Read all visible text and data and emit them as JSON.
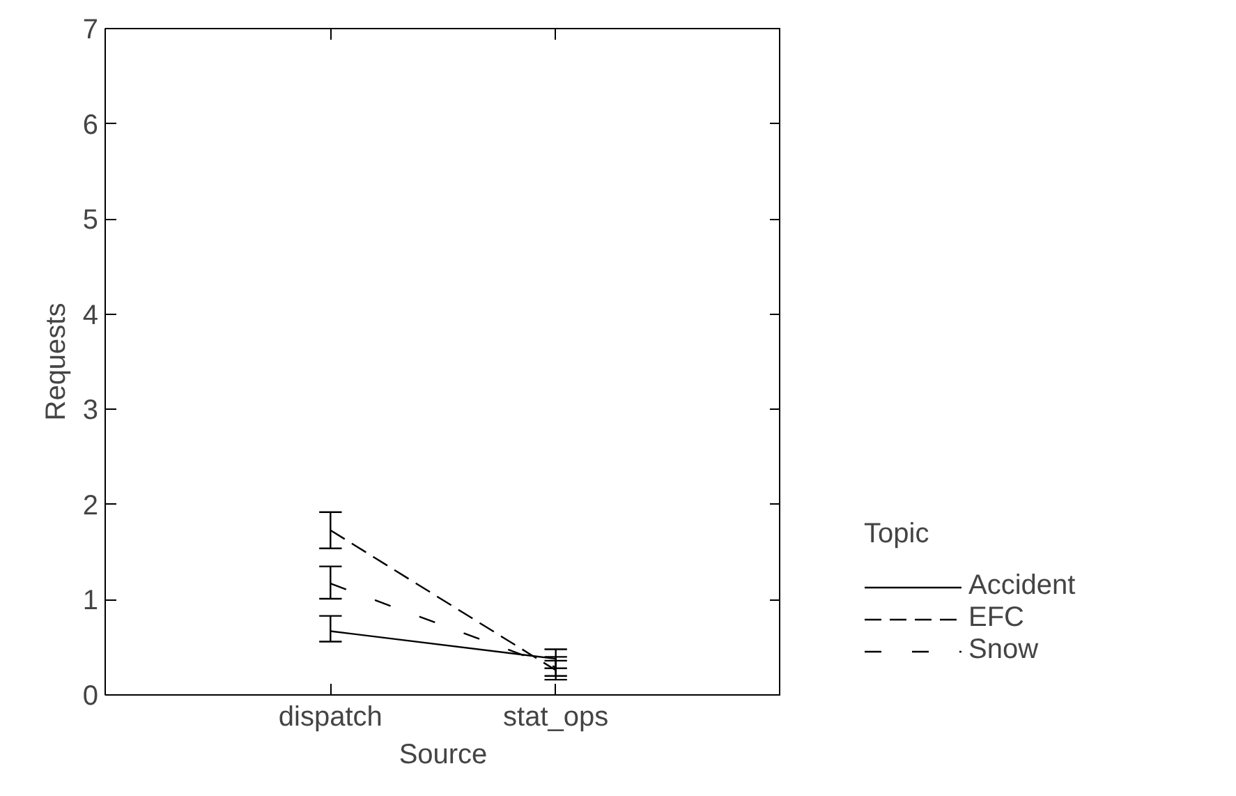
{
  "chart_data": {
    "type": "line",
    "xlabel": "Source",
    "ylabel": "Requests",
    "legend_title": "Topic",
    "categories": [
      "dispatch",
      "stat_ops"
    ],
    "series": [
      {
        "name": "Accident",
        "color": "#000000",
        "line_style": "solid",
        "values": [
          0.67,
          0.38
        ],
        "errors": [
          [
            0.56,
            0.83
          ],
          [
            0.28,
            0.48
          ]
        ]
      },
      {
        "name": "EFC",
        "color": "#000000",
        "line_style": "dashed",
        "values": [
          1.73,
          0.26
        ],
        "errors": [
          [
            1.54,
            1.92
          ],
          [
            0.16,
            0.36
          ]
        ]
      },
      {
        "name": "Snow",
        "color": "#000000",
        "line_style": "loosely dashed",
        "values": [
          1.17,
          0.29
        ],
        "errors": [
          [
            1.01,
            1.35
          ],
          [
            0.2,
            0.4
          ]
        ]
      }
    ],
    "ylim": [
      0,
      7
    ],
    "yticks": [
      0,
      1,
      2,
      3,
      4,
      5,
      6,
      7
    ],
    "grid": false,
    "legend": "right",
    "marker": "none"
  }
}
